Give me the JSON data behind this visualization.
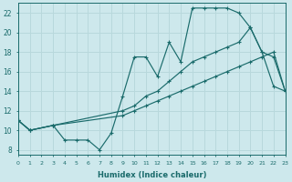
{
  "xlabel": "Humidex (Indice chaleur)",
  "bg_color": "#cde8ec",
  "grid_color": "#b8d8dc",
  "line_color": "#1a6b6b",
  "line1_x": [
    0,
    1,
    3,
    4,
    5,
    6,
    7,
    8,
    9,
    10,
    11,
    12,
    13,
    14,
    15,
    16,
    17,
    18,
    19,
    20,
    21,
    22,
    23
  ],
  "line1_y": [
    11,
    10,
    10.5,
    9,
    9,
    9,
    8,
    9.7,
    13.5,
    17.5,
    17.5,
    15.5,
    19,
    17,
    22.5,
    22.5,
    22.5,
    22.5,
    22,
    20.5,
    18,
    14.5,
    14
  ],
  "line2_x": [
    0,
    1,
    3,
    9,
    10,
    11,
    12,
    13,
    14,
    15,
    16,
    17,
    18,
    19,
    20,
    21,
    22,
    23
  ],
  "line2_y": [
    11,
    10,
    10.5,
    12,
    12.5,
    13.5,
    14,
    15,
    16,
    17,
    17.5,
    18,
    18.5,
    19,
    20.5,
    18,
    17.5,
    14
  ],
  "line3_x": [
    0,
    1,
    3,
    9,
    10,
    11,
    12,
    13,
    14,
    15,
    16,
    17,
    18,
    19,
    20,
    21,
    22,
    23
  ],
  "line3_y": [
    11,
    10,
    10.5,
    11.5,
    12,
    12.5,
    13,
    13.5,
    14,
    14.5,
    15,
    15.5,
    16,
    16.5,
    17,
    17.5,
    18,
    14
  ],
  "xlim": [
    0,
    23
  ],
  "ylim": [
    7.5,
    23
  ],
  "xticks": [
    0,
    1,
    2,
    3,
    4,
    5,
    6,
    7,
    8,
    9,
    10,
    11,
    12,
    13,
    14,
    15,
    16,
    17,
    18,
    19,
    20,
    21,
    22,
    23
  ],
  "yticks": [
    8,
    10,
    12,
    14,
    16,
    18,
    20,
    22
  ]
}
